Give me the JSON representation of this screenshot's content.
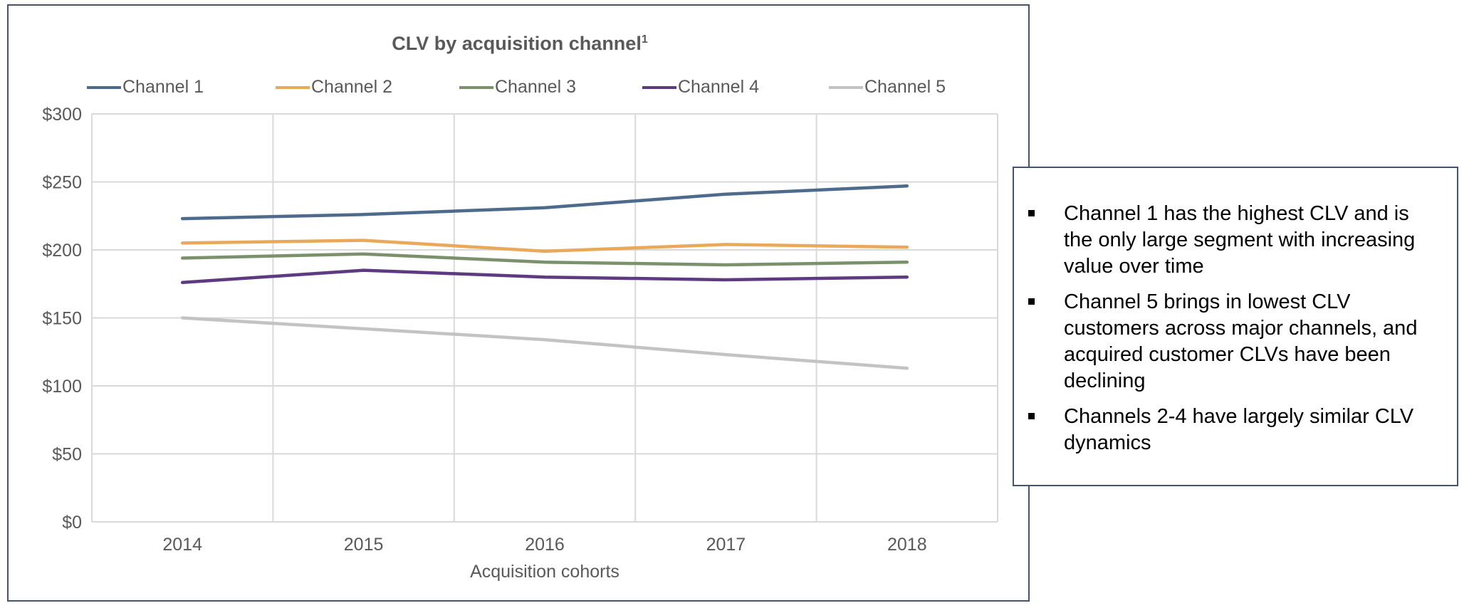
{
  "chart_data": {
    "type": "line",
    "title": "CLV by acquisition channel",
    "title_superscript": "1",
    "xlabel": "Acquisition cohorts",
    "ylabel": "",
    "x": [
      "2014",
      "2015",
      "2016",
      "2017",
      "2018"
    ],
    "ylim": [
      0,
      300
    ],
    "yticks": [
      0,
      50,
      100,
      150,
      200,
      250,
      300
    ],
    "ytick_labels": [
      "$0",
      "$50",
      "$100",
      "$150",
      "$200",
      "$250",
      "$300"
    ],
    "grid": true,
    "legend_position": "top",
    "series": [
      {
        "name": "Channel 1",
        "color": "#4e6a8d",
        "values": [
          223,
          226,
          231,
          241,
          247
        ]
      },
      {
        "name": "Channel 2",
        "color": "#eaa95a",
        "values": [
          205,
          207,
          199,
          204,
          202
        ]
      },
      {
        "name": "Channel 3",
        "color": "#7a916b",
        "values": [
          194,
          197,
          191,
          189,
          191
        ]
      },
      {
        "name": "Channel 4",
        "color": "#5e3b80",
        "values": [
          176,
          185,
          180,
          178,
          180
        ]
      },
      {
        "name": "Channel 5",
        "color": "#c3c3c3",
        "values": [
          150,
          142,
          134,
          123,
          113
        ]
      }
    ]
  },
  "notes": [
    "Channel 1 has the highest CLV and is the only large segment with increasing value over time",
    "Channel 5 brings in lowest CLV customers across major channels, and acquired customer CLVs have been declining",
    "Channels 2-4 have largely similar CLV dynamics"
  ]
}
